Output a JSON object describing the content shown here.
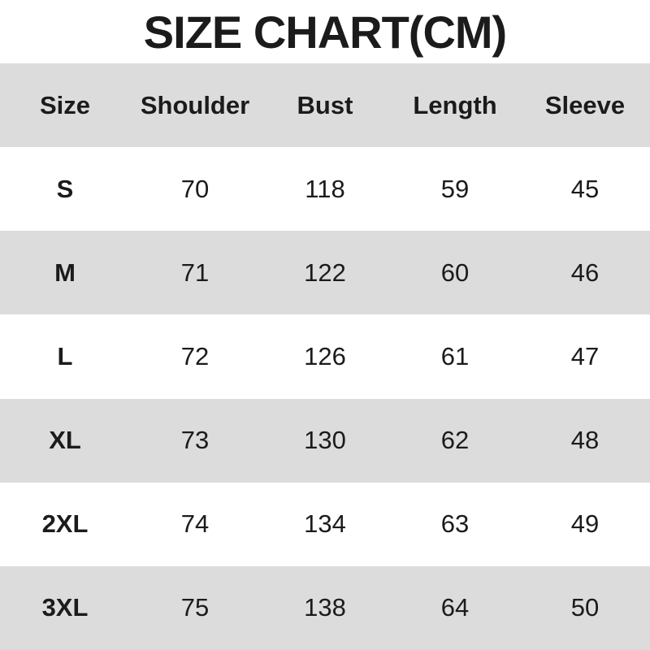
{
  "title": "SIZE CHART(CM)",
  "colors": {
    "row_shade": "#dcdcdc",
    "row_plain": "#ffffff",
    "text": "#1b1b1b"
  },
  "table": {
    "headers": [
      "Size",
      "Shoulder",
      "Bust",
      "Length",
      "Sleeve"
    ],
    "rows": [
      {
        "cells": [
          "S",
          "70",
          "118",
          "59",
          "45"
        ]
      },
      {
        "cells": [
          "M",
          "71",
          "122",
          "60",
          "46"
        ]
      },
      {
        "cells": [
          "L",
          "72",
          "126",
          "61",
          "47"
        ]
      },
      {
        "cells": [
          "XL",
          "73",
          "130",
          "62",
          "48"
        ]
      },
      {
        "cells": [
          "2XL",
          "74",
          "134",
          "63",
          "49"
        ]
      },
      {
        "cells": [
          "3XL",
          "75",
          "138",
          "64",
          "50"
        ]
      }
    ]
  },
  "chart_data": {
    "type": "table",
    "title": "SIZE CHART(CM)",
    "unit": "cm",
    "columns": [
      "Size",
      "Shoulder",
      "Bust",
      "Length",
      "Sleeve"
    ],
    "rows": [
      [
        "S",
        70,
        118,
        59,
        45
      ],
      [
        "M",
        71,
        122,
        60,
        46
      ],
      [
        "L",
        72,
        126,
        61,
        47
      ],
      [
        "XL",
        73,
        130,
        62,
        48
      ],
      [
        "2XL",
        74,
        134,
        63,
        49
      ],
      [
        "3XL",
        75,
        138,
        64,
        50
      ]
    ],
    "layout": {
      "header_background": "#dcdcdc",
      "alternating_row_shading": true,
      "shaded_rows": [
        "M",
        "XL",
        "3XL"
      ],
      "gridlines": false,
      "text_alignment": "center"
    }
  }
}
